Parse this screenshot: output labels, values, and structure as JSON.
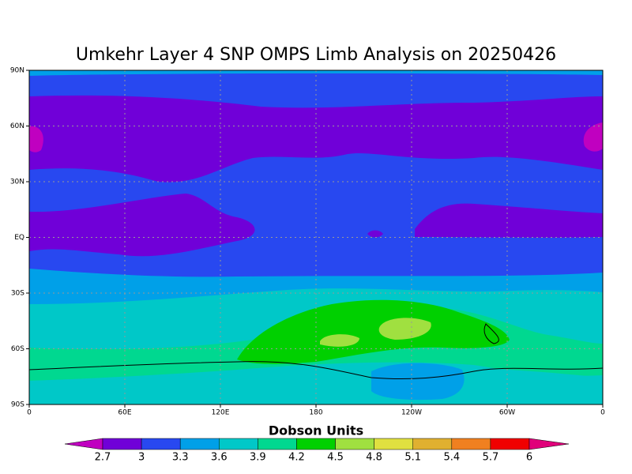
{
  "title": "Umkehr Layer 4 SNP OMPS Limb Analysis on 20250426",
  "map": {
    "lat_labels": [
      "90N",
      "60N",
      "30N",
      "EQ",
      "30S",
      "60S",
      "90S"
    ],
    "lon_labels": [
      "0",
      "60E",
      "120E",
      "180",
      "120W",
      "60W",
      "0"
    ]
  },
  "colorbar": {
    "label": "Dobson Units",
    "ticks": [
      2.7,
      3,
      3.3,
      3.6,
      3.9,
      4.2,
      4.5,
      4.8,
      5.1,
      5.4,
      5.7,
      6
    ],
    "colors": [
      "#c000c0",
      "#7000d8",
      "#2848f0",
      "#00a0e8",
      "#00c8c8",
      "#00d890",
      "#00d000",
      "#a0e040",
      "#e0e040",
      "#e0b030",
      "#f08020",
      "#f00000",
      "#e0007a"
    ]
  }
}
